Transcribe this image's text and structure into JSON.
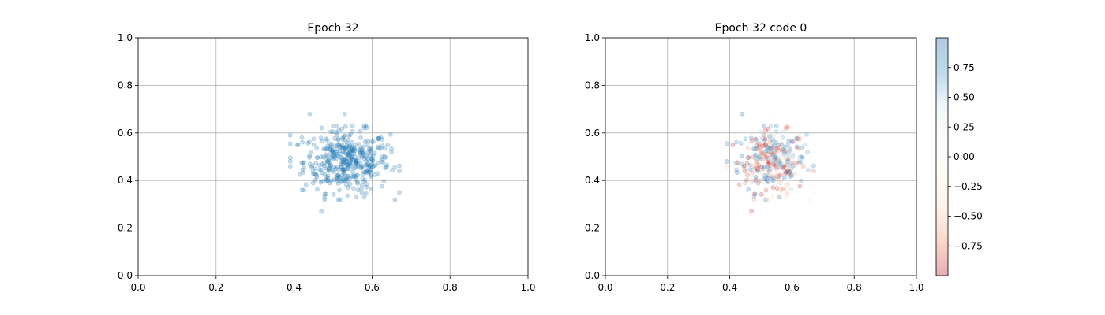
{
  "chart_data": [
    {
      "type": "scatter",
      "title": "Epoch 32",
      "xlabel": "",
      "ylabel": "",
      "xlim": [
        0,
        1
      ],
      "ylim": [
        0,
        1
      ],
      "xticks": [
        "0.0",
        "0.2",
        "0.4",
        "0.6",
        "0.8",
        "1.0"
      ],
      "yticks": [
        "0.0",
        "0.2",
        "0.4",
        "0.6",
        "0.8",
        "1.0"
      ],
      "grid": true,
      "marker_color": "#1f77b4",
      "marker_alpha": 0.25,
      "point_count": 400,
      "x_center": 0.535,
      "y_center": 0.48,
      "x_range": [
        0.39,
        0.67
      ],
      "y_range": [
        0.27,
        0.68
      ],
      "points": [
        [
          0.44,
          0.68
        ],
        [
          0.53,
          0.68
        ],
        [
          0.47,
          0.27
        ],
        [
          0.39,
          0.59
        ],
        [
          0.39,
          0.48
        ],
        [
          0.39,
          0.46
        ],
        [
          0.67,
          0.44
        ],
        [
          0.65,
          0.52
        ],
        [
          0.64,
          0.55
        ],
        [
          0.58,
          0.62
        ],
        [
          0.58,
          0.33
        ],
        [
          0.56,
          0.33
        ],
        [
          0.42,
          0.36
        ],
        [
          0.41,
          0.55
        ],
        [
          0.42,
          0.58
        ]
      ]
    },
    {
      "type": "scatter",
      "title": "Epoch 32 code 0",
      "xlabel": "",
      "ylabel": "",
      "xlim": [
        0,
        1
      ],
      "ylim": [
        0,
        1
      ],
      "xticks": [
        "0.0",
        "0.2",
        "0.4",
        "0.6",
        "0.8",
        "1.0"
      ],
      "yticks": [
        "0.0",
        "0.2",
        "0.4",
        "0.6",
        "0.8",
        "1.0"
      ],
      "grid": true,
      "marker_alpha": 0.25,
      "point_count": 400,
      "colormap": "RdBu",
      "colorbar": {
        "range": [
          -1,
          1
        ],
        "ticks": [
          "0.75",
          "0.50",
          "0.25",
          "0.00",
          "−0.25",
          "−0.50",
          "−0.75"
        ],
        "tick_values": [
          0.75,
          0.5,
          0.25,
          0.0,
          -0.25,
          -0.5,
          -0.75
        ],
        "colors": [
          "#b2182b",
          "#ef8a62",
          "#fddbc7",
          "#fff7e6",
          "#f7f7f7",
          "#d1e5f0",
          "#4393c3",
          "#2166ac"
        ]
      }
    }
  ]
}
